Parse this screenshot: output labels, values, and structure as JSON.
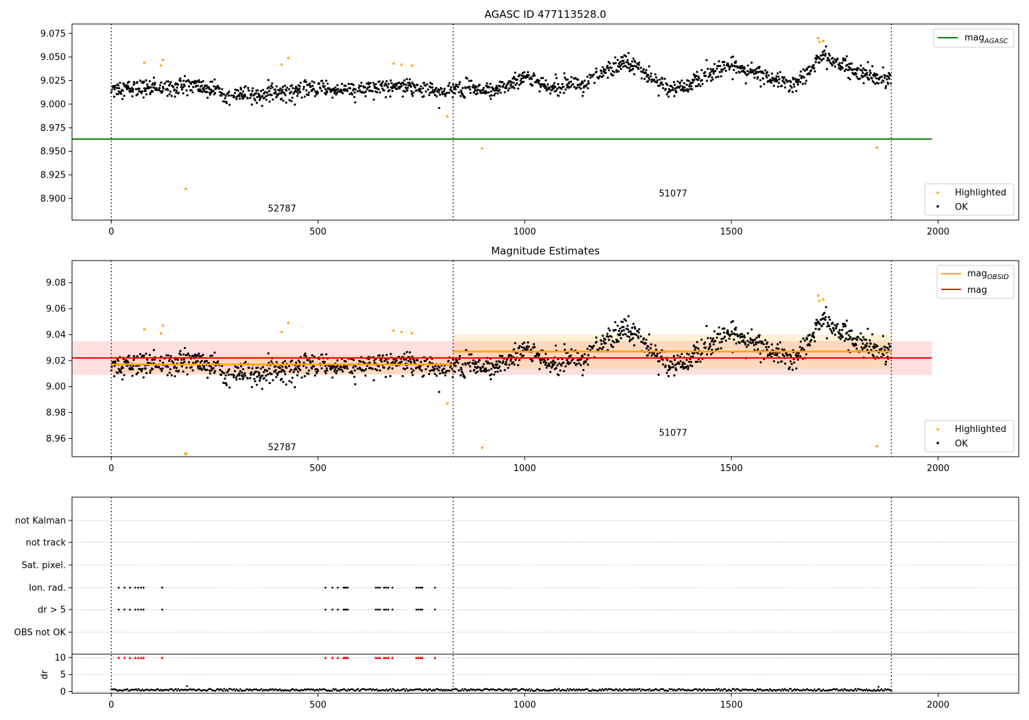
{
  "chart_data": [
    {
      "type": "scatter",
      "title": "AGASC ID 477113528.0",
      "xlim": [
        -95,
        2195
      ],
      "ylim": [
        8.877,
        9.085
      ],
      "xticks": [
        0,
        500,
        1000,
        1500,
        2000
      ],
      "yticks": [
        8.9,
        8.925,
        8.95,
        8.975,
        9.0,
        9.025,
        9.05,
        9.075
      ],
      "ytick_labels": [
        "8.900",
        "8.925",
        "8.950",
        "8.975",
        "9.000",
        "9.025",
        "9.050",
        "9.075"
      ],
      "vlines": [
        0,
        827,
        1887
      ],
      "obsid_labels": [
        {
          "text": "52787",
          "x": 413,
          "y": 8.886
        },
        {
          "text": "51077",
          "x": 1359,
          "y": 8.902
        }
      ],
      "mag_agasc": {
        "value": 8.963,
        "x_range": [
          -95,
          1985
        ]
      },
      "legend_top": [
        {
          "label": "mag",
          "sub": "AGASC",
          "color": "#008000"
        }
      ],
      "legend_bottom": [
        {
          "label": "Highlighted",
          "color": "#ffa500"
        },
        {
          "label": "OK",
          "color": "#000000"
        }
      ],
      "highlighted_points": [
        {
          "x": 80,
          "y": 9.044
        },
        {
          "x": 120,
          "y": 9.041
        },
        {
          "x": 125,
          "y": 9.047
        },
        {
          "x": 180,
          "y": 8.91
        },
        {
          "x": 412,
          "y": 9.042
        },
        {
          "x": 428,
          "y": 9.049
        },
        {
          "x": 683,
          "y": 9.043
        },
        {
          "x": 702,
          "y": 9.042
        },
        {
          "x": 727,
          "y": 9.041
        },
        {
          "x": 813,
          "y": 8.987
        },
        {
          "x": 897,
          "y": 8.953
        },
        {
          "x": 1710,
          "y": 9.07
        },
        {
          "x": 1713,
          "y": 9.066
        },
        {
          "x": 1722,
          "y": 9.067
        },
        {
          "x": 1852,
          "y": 8.954
        }
      ],
      "ok_trend": {
        "x": [
          0,
          100,
          200,
          300,
          400,
          500,
          600,
          700,
          800,
          860,
          900,
          950,
          1000,
          1050,
          1100,
          1150,
          1200,
          1250,
          1300,
          1350,
          1400,
          1450,
          1500,
          1550,
          1600,
          1650,
          1700,
          1720,
          1750,
          1800,
          1850,
          1887
        ],
        "y": [
          9.017,
          9.017,
          9.02,
          9.009,
          9.012,
          9.017,
          9.014,
          9.021,
          9.013,
          9.017,
          9.013,
          9.017,
          9.03,
          9.018,
          9.024,
          9.02,
          9.036,
          9.046,
          9.031,
          9.015,
          9.02,
          9.034,
          9.04,
          9.034,
          9.025,
          9.02,
          9.04,
          9.053,
          9.045,
          9.034,
          9.027,
          9.028
        ]
      },
      "ok_scatter": 0.008
    },
    {
      "type": "scatter",
      "title": "Magnitude Estimates",
      "xlim": [
        -95,
        2195
      ],
      "ylim": [
        8.946,
        9.097
      ],
      "xticks": [
        0,
        500,
        1000,
        1500,
        2000
      ],
      "yticks": [
        8.96,
        8.98,
        9.0,
        9.02,
        9.04,
        9.06,
        9.08
      ],
      "ytick_labels": [
        "8.96",
        "8.98",
        "9.00",
        "9.02",
        "9.04",
        "9.06",
        "9.08"
      ],
      "vlines": [
        0,
        827,
        1887
      ],
      "obsid_labels": [
        {
          "text": "52787",
          "x": 413,
          "y": 8.951
        },
        {
          "text": "51077",
          "x": 1359,
          "y": 8.962
        }
      ],
      "mag": {
        "value": 9.022,
        "band": [
          9.009,
          9.035
        ],
        "x_range": [
          -95,
          1985
        ],
        "color": "#ff0000"
      },
      "mag_obsid": [
        {
          "value": 9.017,
          "band": [
            9.01,
            9.024
          ],
          "x_range": [
            0,
            827
          ]
        },
        {
          "value": 9.027,
          "band": [
            9.014,
            9.04
          ],
          "x_range": [
            827,
            1887
          ]
        }
      ],
      "legend_top": [
        {
          "label": "mag",
          "sub": "OBSID",
          "color": "#ffa500"
        },
        {
          "label": "mag",
          "sub": "",
          "color": "#ff0000"
        }
      ],
      "legend_bottom": [
        {
          "label": "Highlighted",
          "color": "#ffa500"
        },
        {
          "label": "OK",
          "color": "#000000"
        }
      ],
      "highlighted_points": [
        {
          "x": 80,
          "y": 9.044
        },
        {
          "x": 120,
          "y": 9.041
        },
        {
          "x": 125,
          "y": 9.047
        },
        {
          "x": 412,
          "y": 9.042
        },
        {
          "x": 428,
          "y": 9.049
        },
        {
          "x": 683,
          "y": 9.043
        },
        {
          "x": 702,
          "y": 9.042
        },
        {
          "x": 727,
          "y": 9.041
        },
        {
          "x": 813,
          "y": 8.987
        },
        {
          "x": 897,
          "y": 8.953
        },
        {
          "x": 1710,
          "y": 9.07
        },
        {
          "x": 1713,
          "y": 9.066
        },
        {
          "x": 1722,
          "y": 9.067
        },
        {
          "x": 1852,
          "y": 8.954
        }
      ],
      "offscale_marker": {
        "x": 180,
        "color": "#ffa500"
      }
    },
    {
      "type": "scatter",
      "xlim": [
        -95,
        2195
      ],
      "xticks": [
        0,
        500,
        1000,
        1500,
        2000
      ],
      "vlines": [
        0,
        827,
        1887
      ],
      "flag_rows": [
        "not Kalman",
        "not track",
        "Sat. pixel.",
        "Ion. rad.",
        "dr > 5",
        "OBS not OK"
      ],
      "flag_points": {
        "Ion. rad.": [
          18,
          32,
          45,
          58,
          65,
          72,
          78,
          123,
          518,
          535,
          548,
          562,
          565,
          568,
          572,
          640,
          645,
          650,
          660,
          665,
          670,
          680,
          738,
          743,
          748,
          752,
          783
        ],
        "dr > 5": [
          18,
          32,
          45,
          58,
          65,
          72,
          78,
          123,
          518,
          535,
          548,
          562,
          565,
          568,
          572,
          640,
          645,
          650,
          660,
          665,
          670,
          680,
          738,
          743,
          748,
          752,
          783
        ]
      },
      "dr": {
        "ylabel": "dr",
        "ylim": [
          -0.5,
          11
        ],
        "yticks": [
          0,
          5,
          10
        ],
        "clip_value": 10,
        "clipped_x": [
          18,
          32,
          45,
          58,
          65,
          72,
          78,
          123,
          518,
          535,
          548,
          562,
          565,
          568,
          572,
          640,
          645,
          650,
          660,
          665,
          670,
          680,
          738,
          743,
          748,
          752,
          783
        ],
        "typical": 0.5,
        "outliers": [
          {
            "x": 183,
            "y": 1.6
          },
          {
            "x": 1856,
            "y": 1.4
          }
        ]
      }
    }
  ]
}
